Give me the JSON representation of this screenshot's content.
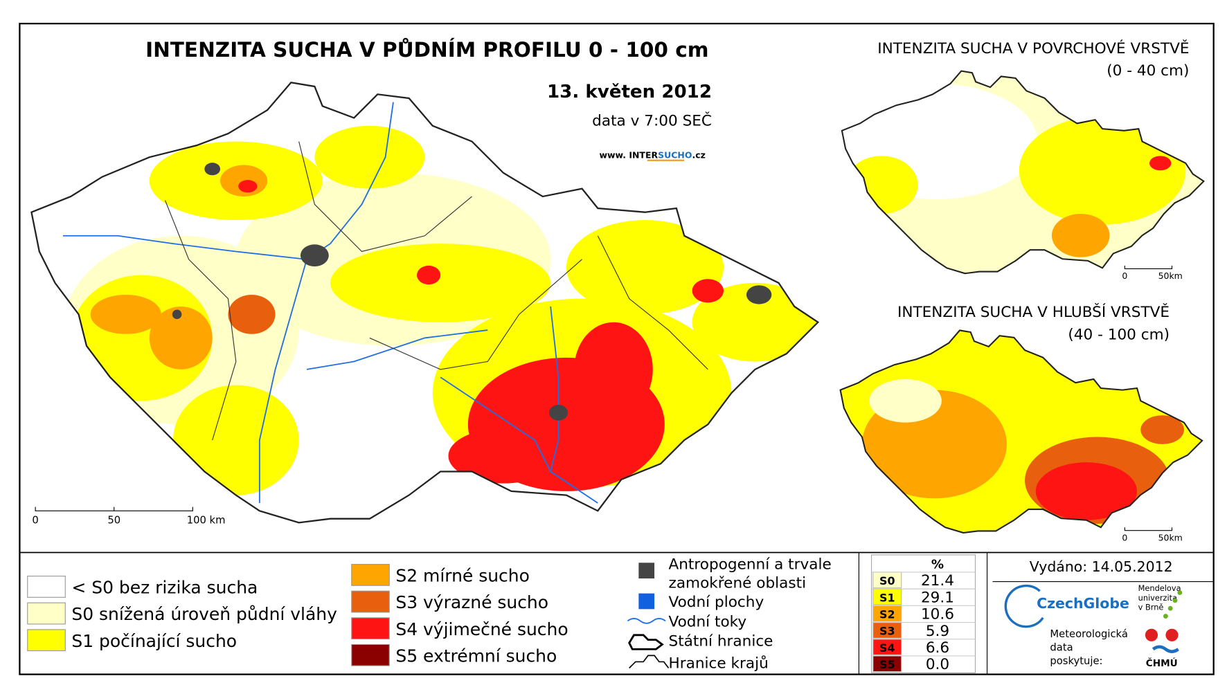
{
  "main_map": {
    "title": "INTENZITA SUCHA V PŮDNÍM PROFILU 0 - 100 cm",
    "date": "13. květen 2012",
    "data_time": "data v 7:00 SEČ",
    "website": {
      "prefix": "www. INTER",
      "highlight": "SUCHO",
      "suffix": ".cz"
    },
    "scale": [
      "0",
      "50",
      "100 km"
    ]
  },
  "inset_surface": {
    "title": "INTENZITA SUCHA V POVRCHOVÉ VRSTVĚ",
    "subtitle": "(0 - 40 cm)",
    "scale": [
      "0",
      "50km"
    ]
  },
  "inset_deep": {
    "title": "INTENZITA SUCHA V HLUBŠÍ VRSTVĚ",
    "subtitle": "(40 - 100 cm)",
    "scale": [
      "0",
      "50km"
    ]
  },
  "legend": {
    "classes": [
      {
        "label": "< S0 bez rizika sucha",
        "color": "#ffffff"
      },
      {
        "label": "S0 snížená úroveň půdní vláhy",
        "color": "#ffffc8"
      },
      {
        "label": "S1 počínající sucho",
        "color": "#ffff00"
      },
      {
        "label": "S2 mírné sucho",
        "color": "#ffa500"
      },
      {
        "label": "S3 výrazné sucho",
        "color": "#e8600e"
      },
      {
        "label": "S4 výjimečné sucho",
        "color": "#ff1414"
      },
      {
        "label": "S5 extrémní sucho",
        "color": "#8b0000"
      }
    ],
    "symbols": [
      {
        "lines": [
          "Antropogenní a trvale",
          "zamokřené oblasti"
        ]
      },
      {
        "lines": [
          "Vodní plochy"
        ]
      },
      {
        "lines": [
          "Vodní toky"
        ]
      },
      {
        "lines": [
          "Státní hranice"
        ]
      },
      {
        "lines": [
          "Hranice krajů"
        ]
      }
    ]
  },
  "table": {
    "header": "%",
    "rows": [
      [
        "S0",
        "21.4"
      ],
      [
        "S1",
        "29.1"
      ],
      [
        "S2",
        "10.6"
      ],
      [
        "S3",
        "5.9"
      ],
      [
        "S4",
        "6.6"
      ],
      [
        "S5",
        "0.0"
      ]
    ]
  },
  "footer": {
    "issued": "Vydáno: 14.05.2012",
    "provided": [
      "Meteorologická",
      "data",
      "poskytuje:"
    ],
    "czechglobe": "CzechGlobe",
    "mendel": [
      "Mendelova",
      "univerzita",
      "v Brně"
    ],
    "chmu": "ČHMÚ"
  }
}
